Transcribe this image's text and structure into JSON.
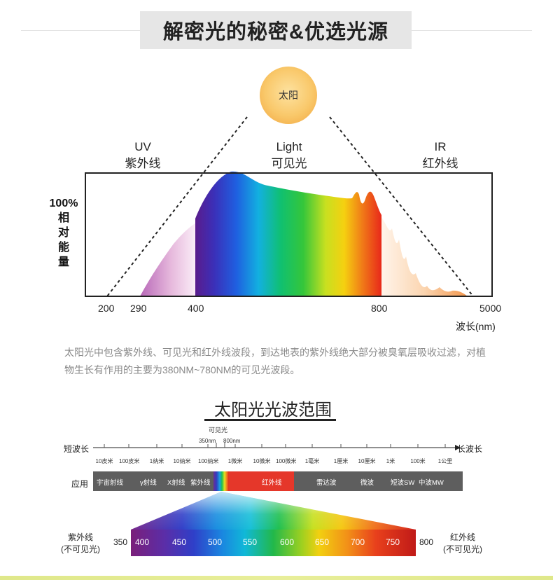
{
  "title": "解密光的秘密&优选光源",
  "sun_label": "太阳",
  "bands": [
    {
      "en": "UV",
      "zh": "紫外线"
    },
    {
      "en": "Light",
      "zh": "可见光"
    },
    {
      "en": "IR",
      "zh": "红外线"
    }
  ],
  "y_label": {
    "line1": "100%",
    "line2": "相",
    "line3": "对",
    "line4": "能",
    "line5": "量"
  },
  "x_ticks": [
    "200",
    "290",
    "400",
    "800",
    "5000"
  ],
  "x_unit": "波长(nm)",
  "description": "太阳光中包含紫外线、可见光和红外线波段，到达地表的紫外线绝大部分被臭氧层吸收过滤，对植物生长有作用的主要为380NM~780NM的可见光波段。",
  "range_title": "太阳光光波范围",
  "visible_label": "可见光",
  "visible_marks": [
    "350nm",
    "800nm"
  ],
  "short_wave": "短波长",
  "long_wave": "长波长",
  "scale_ticks": [
    "10皮米",
    "100皮米",
    "1纳米",
    "10纳米",
    "100纳米",
    "1微米",
    "10微米",
    "100微米",
    "1毫米",
    "1厘米",
    "10厘米",
    "1米",
    "100米",
    "1公里"
  ],
  "application_label": "应用",
  "applications": [
    "宇宙射线",
    "γ射线",
    "X射线",
    "紫外线",
    "红外线",
    "雷达波",
    "微波",
    "短波SW",
    "中波MW"
  ],
  "uv_side": {
    "line1": "紫外线",
    "line2": "(不可见光)"
  },
  "ir_side": {
    "line1": "红外线",
    "line2": "(不可见光)"
  },
  "spectrum_start": "350",
  "spectrum_end": "800",
  "spectrum_ticks": [
    "400",
    "450",
    "500",
    "550",
    "600",
    "650",
    "700",
    "750"
  ],
  "colors": {
    "title_bg": "#e6e6e6",
    "app_bar": "#5e5e5e",
    "sun": "#f5b54a",
    "desc_text": "#8a8a8a"
  }
}
